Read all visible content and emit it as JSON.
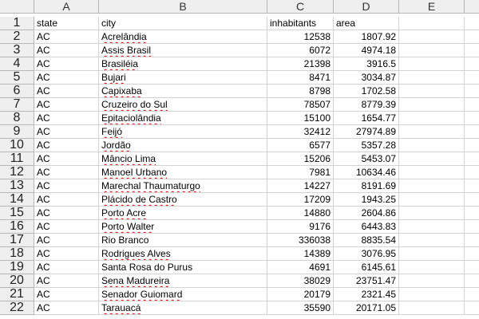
{
  "columns": [
    "A",
    "B",
    "C",
    "D",
    "E"
  ],
  "header_row": {
    "row_number": "1",
    "state": "state",
    "city": "city",
    "inhabitants": "inhabitants",
    "area": "area"
  },
  "rows": [
    {
      "n": "2",
      "state": "AC",
      "city": "Acrelândia",
      "inhabitants": "12538",
      "area": "1807.92"
    },
    {
      "n": "3",
      "state": "AC",
      "city": "Assis Brasil",
      "inhabitants": "6072",
      "area": "4974.18"
    },
    {
      "n": "4",
      "state": "AC",
      "city": "Brasiléia",
      "inhabitants": "21398",
      "area": "3916.5"
    },
    {
      "n": "5",
      "state": "AC",
      "city": "Bujari",
      "inhabitants": "8471",
      "area": "3034.87"
    },
    {
      "n": "6",
      "state": "AC",
      "city": "Capixaba",
      "inhabitants": "8798",
      "area": "1702.58"
    },
    {
      "n": "7",
      "state": "AC",
      "city": "Cruzeiro do Sul",
      "inhabitants": "78507",
      "area": "8779.39"
    },
    {
      "n": "8",
      "state": "AC",
      "city": "Epitaciolândia",
      "inhabitants": "15100",
      "area": "1654.77"
    },
    {
      "n": "9",
      "state": "AC",
      "city": "Feijó",
      "inhabitants": "32412",
      "area": "27974.89"
    },
    {
      "n": "10",
      "state": "AC",
      "city": "Jordão",
      "inhabitants": "6577",
      "area": "5357.28"
    },
    {
      "n": "11",
      "state": "AC",
      "city": "Mâncio Lima",
      "inhabitants": "15206",
      "area": "5453.07"
    },
    {
      "n": "12",
      "state": "AC",
      "city": "Manoel Urbano",
      "inhabitants": "7981",
      "area": "10634.46"
    },
    {
      "n": "13",
      "state": "AC",
      "city": "Marechal Thaumaturgo",
      "inhabitants": "14227",
      "area": "8191.69"
    },
    {
      "n": "14",
      "state": "AC",
      "city": "Plácido de Castro",
      "inhabitants": "17209",
      "area": "1943.25"
    },
    {
      "n": "15",
      "state": "AC",
      "city": "Porto Acre",
      "inhabitants": "14880",
      "area": "2604.86"
    },
    {
      "n": "16",
      "state": "AC",
      "city": "Porto Walter",
      "inhabitants": "9176",
      "area": "6443.83"
    },
    {
      "n": "17",
      "state": "AC",
      "city": "Rio Branco",
      "inhabitants": "336038",
      "area": "8835.54"
    },
    {
      "n": "18",
      "state": "AC",
      "city": "Rodrigues Alves",
      "inhabitants": "14389",
      "area": "3076.95"
    },
    {
      "n": "19",
      "state": "AC",
      "city": "Santa Rosa do Purus",
      "inhabitants": "4691",
      "area": "6145.61"
    },
    {
      "n": "20",
      "state": "AC",
      "city": "Sena Madureira",
      "inhabitants": "38029",
      "area": "23751.47"
    },
    {
      "n": "21",
      "state": "AC",
      "city": "Senador Guiomard",
      "inhabitants": "20179",
      "area": "2321.45"
    },
    {
      "n": "22",
      "state": "AC",
      "city": "Tarauacá",
      "inhabitants": "35590",
      "area": "20171.05"
    }
  ],
  "spellcheck_rows": [
    "2",
    "3",
    "4",
    "5",
    "6",
    "7",
    "8",
    "9",
    "10",
    "11",
    "12",
    "13",
    "14",
    "15",
    "16",
    "18",
    "20",
    "21",
    "22"
  ]
}
